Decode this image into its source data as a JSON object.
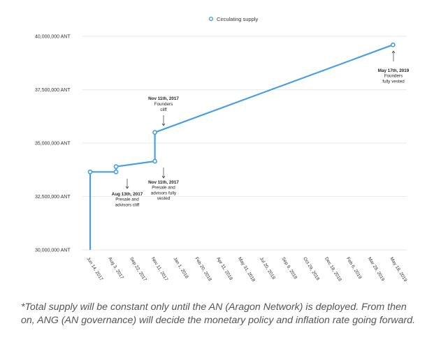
{
  "chart_data": {
    "type": "line",
    "title": "",
    "xlabel": "",
    "ylabel": "",
    "color": "#4a9fe0",
    "legend": {
      "label": "Circulating supply",
      "position": "top-center"
    },
    "ylim": [
      30000000,
      40000000
    ],
    "y_ticks": [
      {
        "value": 30000000,
        "label": "30,000,000 ANT"
      },
      {
        "value": 32500000,
        "label": "32,500,000 ANT"
      },
      {
        "value": 35000000,
        "label": "35,000,000 ANT"
      },
      {
        "value": 37500000,
        "label": "37,500,000 ANT"
      },
      {
        "value": 40000000,
        "label": "40,000,000 ANT"
      }
    ],
    "x_ticks": [
      "Jun 14, 2017",
      "Aug 3, 2017",
      "Sep 22, 2017",
      "Nov 11, 2017",
      "Jan 1, 2018",
      "Feb 20, 2018",
      "Apr 11, 2018",
      "May 31, 2018",
      "Jul 20, 2018",
      "Sep 9, 2018",
      "Oct 29, 2018",
      "Dec 18, 2018",
      "Feb 6, 2019",
      "Mar 28, 2019",
      "May 18, 2019"
    ],
    "series": [
      {
        "name": "Circulating supply",
        "points": [
          {
            "x": "Jun 14, 2017",
            "y": 30000000
          },
          {
            "x": "Jun 14, 2017",
            "y": 33650000
          },
          {
            "x": "Aug 13, 2017",
            "y": 33650000
          },
          {
            "x": "Aug 13, 2017",
            "y": 33900000
          },
          {
            "x": "Nov 11, 2017",
            "y": 34150000
          },
          {
            "x": "Nov 11, 2017",
            "y": 35500000
          },
          {
            "x": "May 17, 2019",
            "y": 39600000
          }
        ]
      }
    ],
    "markers": [
      {
        "x": "Jun 14, 2017",
        "y": 33650000
      },
      {
        "x": "Aug 13, 2017",
        "y": 33650000
      },
      {
        "x": "Aug 13, 2017",
        "y": 33900000
      },
      {
        "x": "Nov 11, 2017",
        "y": 34150000
      },
      {
        "x": "Nov 11, 2017",
        "y": 35500000
      },
      {
        "x": "May 17, 2019",
        "y": 39600000
      }
    ],
    "annotations": [
      {
        "id": "presale-cliff",
        "lines": [
          "Aug 13th, 2017",
          "Presale and",
          "advisors cliff"
        ]
      },
      {
        "id": "presale-vested",
        "lines": [
          "Nov 11th, 2017",
          "Presale and",
          "advisors fully",
          "vested"
        ]
      },
      {
        "id": "founders-cliff",
        "lines": [
          "Nov 11th, 2017",
          "Founders",
          "cliff"
        ]
      },
      {
        "id": "founders-vested",
        "lines": [
          "May 17th, 2019",
          "Founders",
          "fully vested"
        ]
      }
    ]
  },
  "footnote": "*Total supply will be constant only until the AN (Aragon Network) is deployed. From then on, ANG (AN governance) will decide the monetary policy and inflation rate going forward."
}
